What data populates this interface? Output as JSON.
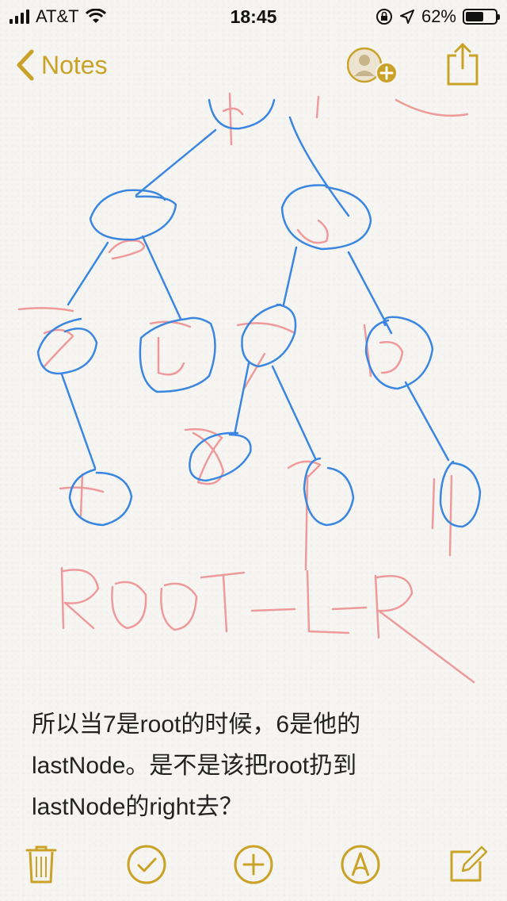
{
  "status_bar": {
    "carrier": "AT&T",
    "time": "18:45",
    "battery_percent": "62%",
    "battery_level": 0.62
  },
  "nav": {
    "back_label": "Notes"
  },
  "drawing": {
    "pencil_text": "ROOT-L-R",
    "node_labels": [
      "1",
      "2",
      "6",
      "3",
      "5",
      "7",
      "10",
      "4",
      "8",
      "9",
      "11"
    ]
  },
  "note": {
    "lines": [
      "所以当7是root的时候，6是他的",
      "lastNode。是不是该把root扔到",
      "lastNode的right去？"
    ]
  },
  "colors": {
    "accent": "#c9a227",
    "pen_blue": "#3b86e0",
    "pencil_red": "#ef9a9a"
  }
}
